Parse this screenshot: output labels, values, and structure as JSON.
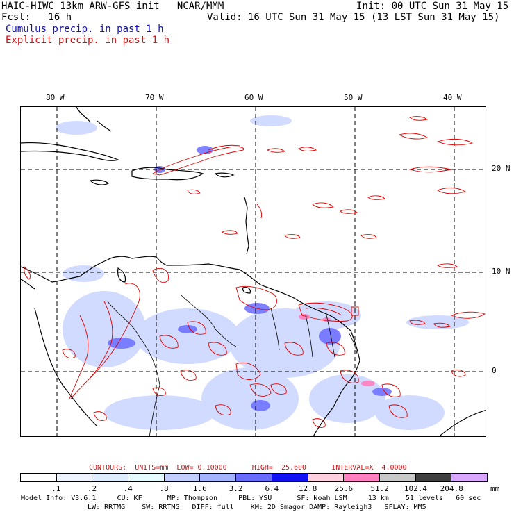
{
  "header": {
    "model_line": "HAIC-HIWC 13km ARW-GFS init   NCAR/MMM",
    "init_line": "Init: 00 UTC Sun 31 May 15",
    "fcst_line": "Fcst:   16 h",
    "valid_line": "Valid: 16 UTC Sun 31 May 15 (13 LST Sun 31 May 15)",
    "cumulus_label": "Cumulus precip. in past 1 h",
    "explicit_label": "Explicit precip. in past 1 h"
  },
  "colors": {
    "explicit_contour": "#e00000",
    "cumulus_fill": "#4060e0",
    "land_outline": "#000000",
    "label_blue": "#1010b0",
    "label_red": "#d01010"
  },
  "map": {
    "lon_labels": [
      "80 W",
      "70 W",
      "60 W",
      "50 W",
      "40 W"
    ],
    "lat_labels": [
      "20 N",
      "10 N",
      "0"
    ]
  },
  "contour_info": {
    "text": "CONTOURS:  UNITS=mm  LOW= 0.10000      HIGH=  25.600      INTERVAL=X  4.0000"
  },
  "colorbar": {
    "units": "mm",
    "labels": [
      ".1",
      ".2",
      ".4",
      ".8",
      "1.6",
      "3.2",
      "6.4",
      "12.8",
      "25.6",
      "51.2",
      "102.4",
      "204.8"
    ],
    "colors": [
      "#ffffff",
      "#eef4ff",
      "#ddecff",
      "#e4fbff",
      "#c2cfff",
      "#a4b4ff",
      "#6a6cff",
      "#1010f0",
      "#ffd0e0",
      "#ff80c0",
      "#c8c8c8",
      "#404040",
      "#d8a8ff"
    ]
  },
  "footer": {
    "line1": "Model Info: V3.6.1     CU: KF      MP: Thompson     PBL: YSU      SF: Noah LSM     13 km    51 levels   60 sec",
    "line2": "LW: RRTMG    SW: RRTMG   DIFF: full    KM: 2D Smagor DAMP: Rayleigh3   SFLAY: MM5"
  }
}
